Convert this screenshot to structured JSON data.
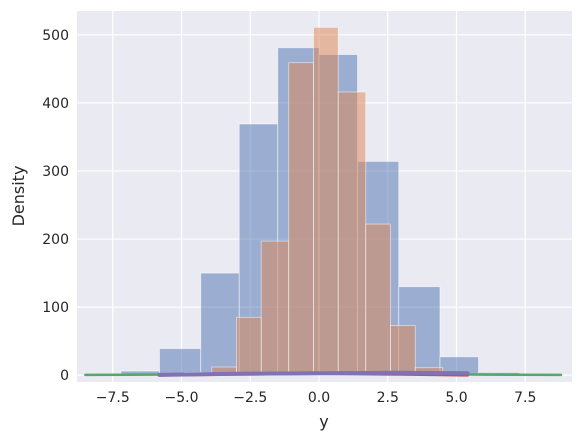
{
  "chart_data": {
    "type": "bar",
    "xlabel": "y",
    "ylabel": "Density",
    "xlim": [
      -8.8,
      9.2
    ],
    "ylim": [
      -10,
      535
    ],
    "xticks": [
      -7.5,
      -5.0,
      -2.5,
      0.0,
      2.5,
      5.0,
      7.5
    ],
    "xtick_labels": [
      "−7.5",
      "−5.0",
      "−2.5",
      "0.0",
      "2.5",
      "5.0",
      "7.5"
    ],
    "yticks": [
      0,
      100,
      200,
      300,
      400,
      500
    ],
    "ytick_labels": [
      "0",
      "100",
      "200",
      "300",
      "400",
      "500"
    ],
    "grid": true,
    "background_color": "#eaeaf2",
    "series": [
      {
        "color": "#4c72b0",
        "opacity": 0.5,
        "bins": [
          {
            "x0": -7.2,
            "x1": -5.8,
            "value": 6
          },
          {
            "x0": -5.8,
            "x1": -4.3,
            "value": 39
          },
          {
            "x0": -4.3,
            "x1": -2.9,
            "value": 150
          },
          {
            "x0": -2.9,
            "x1": -1.5,
            "value": 369
          },
          {
            "x0": -1.5,
            "x1": 0.0,
            "value": 481
          },
          {
            "x0": 0.0,
            "x1": 1.4,
            "value": 471
          },
          {
            "x0": 1.4,
            "x1": 2.9,
            "value": 314
          },
          {
            "x0": 2.9,
            "x1": 4.4,
            "value": 130
          },
          {
            "x0": 4.4,
            "x1": 5.8,
            "value": 27
          },
          {
            "x0": 5.8,
            "x1": 7.3,
            "value": 4
          }
        ]
      },
      {
        "color": "#dd8452",
        "opacity": 0.5,
        "bins": [
          {
            "x0": -5.8,
            "x1": -4.9,
            "value": 2
          },
          {
            "x0": -4.9,
            "x1": -3.9,
            "value": 4
          },
          {
            "x0": -3.9,
            "x1": -3.0,
            "value": 12
          },
          {
            "x0": -3.0,
            "x1": -2.1,
            "value": 85
          },
          {
            "x0": -2.1,
            "x1": -1.1,
            "value": 197
          },
          {
            "x0": -1.1,
            "x1": -0.2,
            "value": 459
          },
          {
            "x0": -0.2,
            "x1": 0.7,
            "value": 511
          },
          {
            "x0": 0.7,
            "x1": 1.7,
            "value": 416
          },
          {
            "x0": 1.7,
            "x1": 2.6,
            "value": 222
          },
          {
            "x0": 2.6,
            "x1": 3.5,
            "value": 73
          },
          {
            "x0": 3.5,
            "x1": 4.5,
            "value": 11
          },
          {
            "x0": 4.5,
            "x1": 5.4,
            "value": 2
          }
        ]
      }
    ],
    "lines": [
      {
        "color": "#55a868",
        "width": 2.5,
        "points": [
          [
            -8.5,
            0.4
          ],
          [
            -6.0,
            0.9
          ],
          [
            -3.0,
            1.8
          ],
          [
            0.0,
            2.3
          ],
          [
            3.0,
            1.8
          ],
          [
            6.0,
            0.9
          ],
          [
            8.8,
            0.4
          ]
        ]
      },
      {
        "color": "#c44e52",
        "width": 3.5,
        "points": [
          [
            -5.8,
            0.5
          ],
          [
            -3.0,
            1.8
          ],
          [
            0.0,
            2.8
          ],
          [
            3.0,
            1.8
          ],
          [
            5.4,
            0.5
          ]
        ]
      },
      {
        "color": "#8172b3",
        "width": 4,
        "points": [
          [
            -5.8,
            0.5
          ],
          [
            -3.0,
            2.0
          ],
          [
            0.0,
            3.0
          ],
          [
            3.0,
            3.5
          ],
          [
            5.4,
            3.0
          ]
        ]
      }
    ]
  }
}
